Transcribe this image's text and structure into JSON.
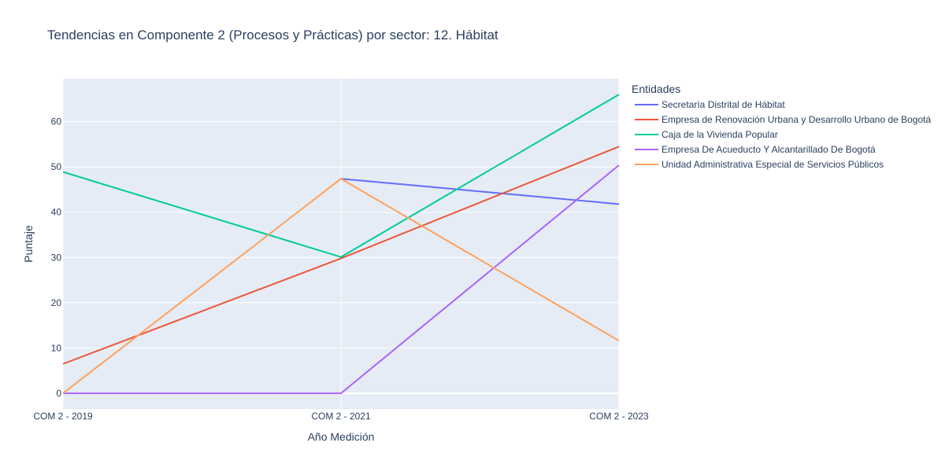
{
  "chart_data": {
    "type": "line",
    "title": "Tendencias en Componente 2 (Procesos y Prácticas) por sector: 12. Hábitat",
    "xlabel": "Año Medición",
    "ylabel": "Puntaje",
    "categories": [
      "COM 2 - 2019",
      "COM 2 - 2021",
      "COM 2 - 2023"
    ],
    "ylim": [
      -3.5,
      69.5
    ],
    "yticks": [
      0,
      10,
      20,
      30,
      40,
      50,
      60
    ],
    "legend_title": "Entidades",
    "legend_position": "right",
    "series": [
      {
        "name": "Secretaría Distrital de Hábitat",
        "color": "#636efa",
        "values": [
          null,
          47.4,
          41.8
        ]
      },
      {
        "name": "Empresa de Renovación Urbana y Desarrollo Urbano de Bogotá",
        "color": "#ef553b",
        "values": [
          6.5,
          29.8,
          54.5
        ]
      },
      {
        "name": "Caja de la Vivienda Popular",
        "color": "#00cc96",
        "values": [
          48.9,
          30.1,
          66.0
        ]
      },
      {
        "name": "Empresa De Acueducto Y Alcantarillado De Bogotá",
        "color": "#ab63fa",
        "values": [
          0,
          0,
          50.4
        ]
      },
      {
        "name": "Unidad Administrativa Especial de Servicios Públicos",
        "color": "#ffa15a",
        "values": [
          0,
          47.4,
          11.6
        ]
      }
    ]
  }
}
